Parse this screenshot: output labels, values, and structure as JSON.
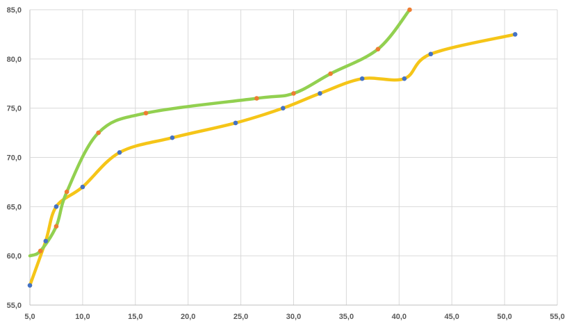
{
  "chart_data": {
    "type": "scatter",
    "title": "",
    "xlabel": "",
    "ylabel": "",
    "xlim": [
      5,
      55
    ],
    "ylim": [
      55,
      85
    ],
    "x_ticks": [
      "5,0",
      "10,0",
      "15,0",
      "20,0",
      "25,0",
      "30,0",
      "35,0",
      "40,0",
      "45,0",
      "50,0",
      "55,0"
    ],
    "y_ticks": [
      "55,0",
      "60,0",
      "65,0",
      "70,0",
      "75,0",
      "80,0",
      "85,0"
    ],
    "grid": true,
    "smooth_lines": true,
    "series": [
      {
        "line_color": "#92d050",
        "marker_color": "#ed7d31",
        "points": [
          [
            5,
            60
          ],
          [
            6,
            60.5
          ],
          [
            7.5,
            63
          ],
          [
            8.5,
            66.5
          ],
          [
            11.5,
            72.5
          ],
          [
            16,
            74.5
          ],
          [
            26.5,
            76
          ],
          [
            30,
            76.5
          ],
          [
            33.5,
            78.5
          ],
          [
            38,
            81
          ],
          [
            41,
            85
          ]
        ]
      },
      {
        "line_color": "#f5c518",
        "marker_color": "#4472c4",
        "points": [
          [
            5,
            57
          ],
          [
            6.5,
            61.5
          ],
          [
            7.5,
            65
          ],
          [
            10,
            67
          ],
          [
            13.5,
            70.5
          ],
          [
            18.5,
            72
          ],
          [
            24.5,
            73.5
          ],
          [
            29,
            75
          ],
          [
            32.5,
            76.5
          ],
          [
            36.5,
            78
          ],
          [
            40.5,
            78
          ],
          [
            43,
            80.5
          ],
          [
            51,
            82.5
          ]
        ]
      }
    ]
  }
}
